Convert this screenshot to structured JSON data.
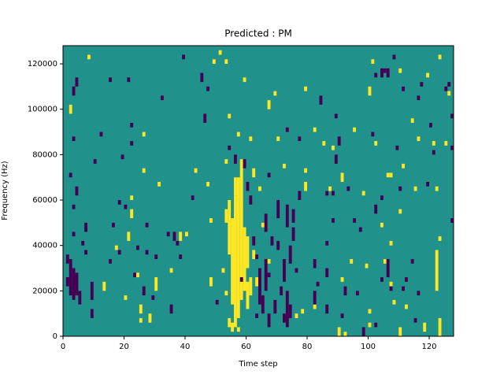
{
  "chart_data": {
    "type": "heatmap",
    "title": "Predicted : PM",
    "xlabel": "Time step",
    "ylabel": "Frequency (Hz)",
    "xlim": [
      0,
      128
    ],
    "ylim": [
      0,
      128000
    ],
    "xticks": [
      0,
      20,
      40,
      60,
      80,
      100,
      120
    ],
    "yticks": [
      0,
      20000,
      40000,
      60000,
      80000,
      100000,
      120000
    ],
    "background": "#21918c",
    "series": [
      {
        "color": "#fde725",
        "x": [
          55,
          56,
          57,
          58,
          59,
          60,
          54,
          55,
          57,
          56,
          53,
          54,
          53,
          52,
          60,
          61,
          62,
          63,
          2,
          8,
          13,
          17,
          20,
          21,
          22,
          22,
          24,
          26,
          26,
          25,
          25,
          28,
          30,
          31,
          35,
          38,
          40,
          43,
          47,
          48,
          48,
          49,
          51,
          53,
          54,
          57,
          59,
          61,
          65,
          67,
          67,
          69,
          70,
          72,
          76,
          78,
          79,
          79,
          79,
          82,
          82,
          85,
          87,
          88,
          90,
          91,
          91,
          92,
          94,
          95,
          98,
          99,
          100,
          100,
          100,
          101,
          102,
          104,
          106,
          107,
          107,
          108,
          110,
          110,
          114,
          115,
          119,
          121,
          122,
          122,
          123,
          123,
          123,
          118,
          126,
          110,
          112,
          116,
          125,
          105,
          107,
          111,
          62,
          64,
          53
        ],
        "y_from": [
          14000,
          4000,
          8000,
          16000,
          20000,
          30000,
          4000,
          2000,
          2000,
          62000,
          18000,
          36000,
          50000,
          28000,
          12000,
          18000,
          34000,
          22000,
          98000,
          122000,
          20000,
          38000,
          16000,
          42000,
          52000,
          60000,
          26000,
          72000,
          88000,
          10000,
          6000,
          6000,
          20000,
          66000,
          28000,
          42000,
          44000,
          72000,
          66000,
          50000,
          22000,
          120000,
          124000,
          120000,
          96000,
          88000,
          112000,
          86000,
          48000,
          32000,
          100000,
          106000,
          86000,
          74000,
          8000,
          10000,
          64000,
          72000,
          108000,
          12000,
          90000,
          84000,
          64000,
          82000,
          0,
          24000,
          68000,
          0,
          32000,
          90000,
          62000,
          30000,
          4000,
          10000,
          106000,
          120000,
          84000,
          48000,
          70000,
          22000,
          70000,
          14000,
          54000,
          0,
          94000,
          64000,
          114000,
          84000,
          64000,
          20000,
          42000,
          0,
          122000,
          2000,
          106000,
          116000,
          12000,
          86000,
          84000,
          32000,
          40000,
          74000,
          70000,
          64000,
          76000
        ],
        "y_to": [
          52000,
          62000,
          70000,
          78000,
          48000,
          44000,
          8000,
          6000,
          4000,
          70000,
          20000,
          60000,
          56000,
          30000,
          24000,
          26000,
          38000,
          26000,
          102000,
          124000,
          24000,
          40000,
          18000,
          46000,
          56000,
          62000,
          28000,
          74000,
          90000,
          14000,
          8000,
          10000,
          26000,
          68000,
          30000,
          46000,
          46000,
          74000,
          68000,
          52000,
          26000,
          122000,
          126000,
          122000,
          98000,
          90000,
          114000,
          88000,
          50000,
          34000,
          104000,
          108000,
          88000,
          76000,
          10000,
          12000,
          68000,
          74000,
          110000,
          14000,
          92000,
          86000,
          66000,
          84000,
          4000,
          26000,
          72000,
          2000,
          34000,
          92000,
          64000,
          32000,
          6000,
          12000,
          110000,
          122000,
          86000,
          50000,
          72000,
          24000,
          72000,
          16000,
          56000,
          4000,
          96000,
          66000,
          116000,
          86000,
          66000,
          38000,
          44000,
          8000,
          124000,
          6000,
          108000,
          118000,
          14000,
          88000,
          86000,
          34000,
          42000,
          76000,
          74000,
          66000,
          78000
        ]
      },
      {
        "color": "#440154",
        "x": [
          2,
          3,
          4,
          5,
          1,
          1,
          2,
          3,
          4,
          3,
          3,
          4,
          3,
          6,
          7,
          7,
          9,
          9,
          10,
          12,
          15,
          15,
          16,
          18,
          18,
          19,
          20,
          21,
          22,
          22,
          23,
          24,
          26,
          27,
          27,
          29,
          30,
          32,
          34,
          35,
          36,
          37,
          38,
          39,
          42,
          45,
          46,
          47,
          50,
          54,
          56,
          58,
          59,
          60,
          61,
          62,
          63,
          63,
          64,
          65,
          66,
          66,
          67,
          67,
          67,
          68,
          69,
          70,
          70,
          71,
          72,
          72,
          73,
          73,
          74,
          74,
          75,
          75,
          73,
          76,
          77,
          77,
          82,
          82,
          83,
          84,
          86,
          86,
          86,
          86,
          88,
          88,
          89,
          89,
          90,
          91,
          92,
          93,
          95,
          96,
          97,
          98,
          101,
          102,
          102,
          104,
          104,
          106,
          107,
          109,
          110,
          111,
          112,
          114,
          115,
          116,
          119,
          120,
          121,
          126,
          127,
          127,
          104,
          106,
          105,
          102,
          108,
          111,
          116,
          117,
          125,
          127
        ],
        "y_from": [
          18000,
          16000,
          18000,
          14000,
          22000,
          32000,
          70000,
          56000,
          62000,
          44000,
          86000,
          110000,
          106000,
          40000,
          46000,
          36000,
          8000,
          16000,
          76000,
          88000,
          112000,
          32000,
          48000,
          36000,
          58000,
          78000,
          56000,
          112000,
          92000,
          84000,
          26000,
          38000,
          18000,
          48000,
          36000,
          16000,
          34000,
          104000,
          44000,
          10000,
          42000,
          40000,
          34000,
          122000,
          60000,
          112000,
          94000,
          108000,
          14000,
          82000,
          76000,
          24000,
          74000,
          64000,
          58000,
          40000,
          8000,
          34000,
          14000,
          10000,
          20000,
          46000,
          4000,
          26000,
          70000,
          40000,
          10000,
          38000,
          52000,
          18000,
          6000,
          24000,
          4000,
          48000,
          8000,
          32000,
          42000,
          50000,
          90000,
          28000,
          86000,
          60000,
          14000,
          30000,
          22000,
          102000,
          10000,
          26000,
          40000,
          62000,
          50000,
          62000,
          76000,
          96000,
          84000,
          8000,
          18000,
          64000,
          50000,
          18000,
          46000,
          0,
          88000,
          4000,
          54000,
          24000,
          60000,
          26000,
          20000,
          82000,
          64000,
          20000,
          24000,
          32000,
          6000,
          18000,
          66000,
          92000,
          80000,
          110000,
          50000,
          82000,
          114000,
          114000,
          116000,
          114000,
          122000,
          108000,
          104000,
          110000,
          108000,
          96000
        ],
        "y_to": [
          34000,
          30000,
          28000,
          20000,
          26000,
          36000,
          72000,
          58000,
          66000,
          46000,
          88000,
          114000,
          110000,
          42000,
          50000,
          38000,
          12000,
          24000,
          78000,
          90000,
          114000,
          34000,
          50000,
          38000,
          60000,
          80000,
          58000,
          114000,
          94000,
          86000,
          28000,
          40000,
          22000,
          50000,
          38000,
          18000,
          36000,
          106000,
          46000,
          14000,
          46000,
          42000,
          36000,
          124000,
          62000,
          116000,
          98000,
          110000,
          16000,
          84000,
          80000,
          26000,
          78000,
          68000,
          62000,
          44000,
          10000,
          36000,
          30000,
          18000,
          34000,
          54000,
          10000,
          28000,
          72000,
          44000,
          16000,
          42000,
          60000,
          22000,
          10000,
          34000,
          20000,
          58000,
          14000,
          40000,
          48000,
          56000,
          92000,
          30000,
          88000,
          64000,
          20000,
          34000,
          24000,
          106000,
          14000,
          30000,
          42000,
          64000,
          52000,
          64000,
          80000,
          98000,
          88000,
          10000,
          22000,
          66000,
          52000,
          20000,
          48000,
          4000,
          90000,
          6000,
          58000,
          26000,
          62000,
          34000,
          22000,
          84000,
          66000,
          22000,
          26000,
          34000,
          8000,
          20000,
          68000,
          94000,
          82000,
          112000,
          52000,
          84000,
          118000,
          118000,
          118000,
          116000,
          124000,
          110000,
          106000,
          112000,
          110000,
          98000
        ]
      }
    ]
  }
}
